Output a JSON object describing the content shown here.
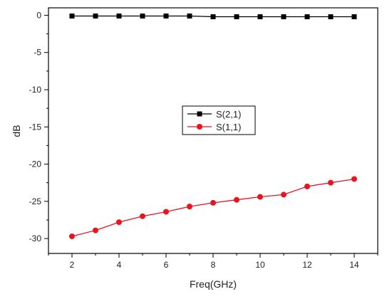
{
  "chart_data": {
    "type": "line",
    "x": [
      2,
      3,
      4,
      5,
      6,
      7,
      8,
      9,
      10,
      11,
      12,
      13,
      14
    ],
    "series": [
      {
        "name": "S(2,1)",
        "color": "#000000",
        "marker": "square",
        "values": [
          -0.1,
          -0.1,
          -0.1,
          -0.1,
          -0.1,
          -0.1,
          -0.2,
          -0.2,
          -0.2,
          -0.2,
          -0.2,
          -0.2,
          -0.2
        ]
      },
      {
        "name": "S(1,1)",
        "color": "#e8141e",
        "marker": "circle",
        "values": [
          -29.7,
          -28.9,
          -27.8,
          -27.0,
          -26.4,
          -25.7,
          -25.2,
          -24.8,
          -24.4,
          -24.1,
          -23.0,
          -22.5,
          -22.0
        ]
      }
    ],
    "xlabel": "Freq(GHz)",
    "ylabel": "dB",
    "xlim": [
      1,
      15
    ],
    "ylim": [
      -32,
      1
    ],
    "xticks": [
      2,
      4,
      6,
      8,
      10,
      12,
      14
    ],
    "yticks": [
      0,
      -5,
      -10,
      -15,
      -20,
      -25,
      -30
    ],
    "grid": false,
    "legend_position": "center"
  }
}
